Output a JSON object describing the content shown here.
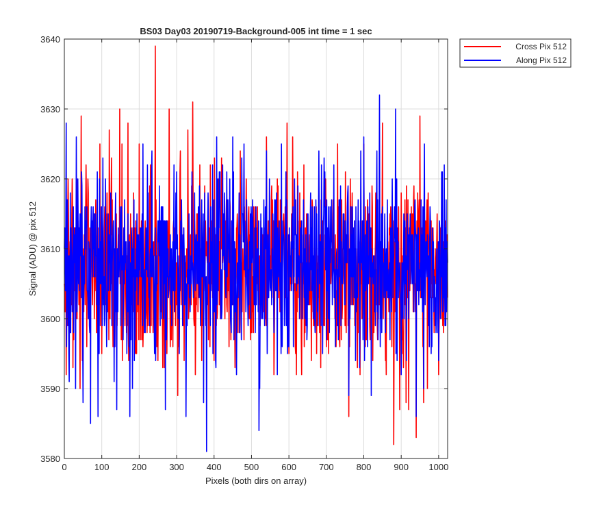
{
  "chart_data": {
    "type": "line",
    "title": "BS03 Day03 20190719-Background-005 int time = 1 sec",
    "xlabel": "Pixels (both dirs on array)",
    "ylabel": "Signal (ADU) @ pix 512",
    "xlim": [
      0,
      1024
    ],
    "ylim": [
      3580,
      3640
    ],
    "xticks": [
      0,
      100,
      200,
      300,
      400,
      500,
      600,
      700,
      800,
      900,
      1000
    ],
    "yticks": [
      3580,
      3590,
      3600,
      3610,
      3620,
      3630,
      3640
    ],
    "grid": true,
    "legend_position": "outside-top-right",
    "n_points": 1024,
    "series": [
      {
        "name": "Cross Pix 512",
        "color": "#ff0000",
        "baseline": 3607,
        "std": 6,
        "points": [
          [
            0,
            3605
          ],
          [
            5,
            3592
          ],
          [
            10,
            3620
          ],
          [
            20,
            3615
          ],
          [
            30,
            3598
          ],
          [
            45,
            3629
          ],
          [
            60,
            3596
          ],
          [
            95,
            3625
          ],
          [
            100,
            3595
          ],
          [
            120,
            3627
          ],
          [
            130,
            3596
          ],
          [
            148,
            3630
          ],
          [
            155,
            3594
          ],
          [
            170,
            3628
          ],
          [
            200,
            3625
          ],
          [
            210,
            3596
          ],
          [
            230,
            3622
          ],
          [
            243,
            3639
          ],
          [
            250,
            3594
          ],
          [
            280,
            3630
          ],
          [
            290,
            3596
          ],
          [
            310,
            3624
          ],
          [
            320,
            3594
          ],
          [
            330,
            3627
          ],
          [
            343,
            3631
          ],
          [
            350,
            3592
          ],
          [
            390,
            3622
          ],
          [
            400,
            3594
          ],
          [
            420,
            3623
          ],
          [
            440,
            3596
          ],
          [
            470,
            3624
          ],
          [
            480,
            3597
          ],
          [
            540,
            3626
          ],
          [
            560,
            3592
          ],
          [
            595,
            3628
          ],
          [
            600,
            3595
          ],
          [
            610,
            3626
          ],
          [
            620,
            3592
          ],
          [
            640,
            3622
          ],
          [
            660,
            3594
          ],
          [
            700,
            3596
          ],
          [
            730,
            3625
          ],
          [
            760,
            3586
          ],
          [
            790,
            3592
          ],
          [
            800,
            3625
          ],
          [
            850,
            3628
          ],
          [
            860,
            3592
          ],
          [
            880,
            3582
          ],
          [
            900,
            3618
          ],
          [
            920,
            3587
          ],
          [
            940,
            3583
          ],
          [
            950,
            3629
          ],
          [
            960,
            3588
          ],
          [
            970,
            3590
          ],
          [
            1000,
            3592
          ],
          [
            1024,
            3603
          ]
        ]
      },
      {
        "name": "Along Pix 512",
        "color": "#0000ff",
        "baseline": 3608,
        "std": 6,
        "points": [
          [
            0,
            3610
          ],
          [
            5,
            3628
          ],
          [
            15,
            3598
          ],
          [
            30,
            3590
          ],
          [
            50,
            3588
          ],
          [
            70,
            3585
          ],
          [
            90,
            3586
          ],
          [
            110,
            3620
          ],
          [
            140,
            3587
          ],
          [
            175,
            3586
          ],
          [
            210,
            3625
          ],
          [
            240,
            3600
          ],
          [
            270,
            3587
          ],
          [
            300,
            3621
          ],
          [
            325,
            3586
          ],
          [
            350,
            3604
          ],
          [
            372,
            3588
          ],
          [
            380,
            3581
          ],
          [
            410,
            3620
          ],
          [
            450,
            3626
          ],
          [
            480,
            3625
          ],
          [
            510,
            3598
          ],
          [
            520,
            3584
          ],
          [
            540,
            3624
          ],
          [
            560,
            3598
          ],
          [
            580,
            3625
          ],
          [
            600,
            3596
          ],
          [
            640,
            3610
          ],
          [
            680,
            3624
          ],
          [
            700,
            3597
          ],
          [
            720,
            3622
          ],
          [
            760,
            3589
          ],
          [
            800,
            3626
          ],
          [
            810,
            3596
          ],
          [
            820,
            3589
          ],
          [
            842,
            3632
          ],
          [
            870,
            3597
          ],
          [
            885,
            3630
          ],
          [
            900,
            3592
          ],
          [
            920,
            3600
          ],
          [
            940,
            3586
          ],
          [
            960,
            3590
          ],
          [
            980,
            3595
          ],
          [
            1000,
            3594
          ],
          [
            1015,
            3622
          ],
          [
            1024,
            3608
          ]
        ]
      }
    ]
  }
}
